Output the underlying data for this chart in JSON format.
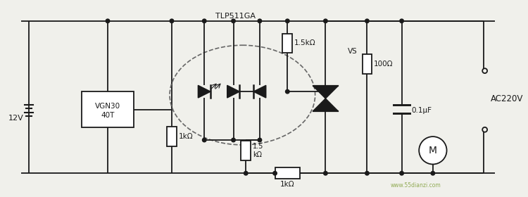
{
  "bg_color": "#f0f0eb",
  "line_color": "#1a1a1a",
  "labels": {
    "battery": "12V",
    "vgn30": [
      "VGN30",
      "40T"
    ],
    "tlp": "TLP511GA",
    "r1k_a": "1kΩ",
    "r15k_inner": "1.5\nkΩ",
    "r1k_bot": "1kΩ",
    "r15k_top": "1.5kΩ",
    "vs": "VS",
    "r100": "100Ω",
    "cap": "0.1μF",
    "ac220v": "AC220V",
    "motor": "M",
    "watermark": "www.55dianzi.com"
  }
}
